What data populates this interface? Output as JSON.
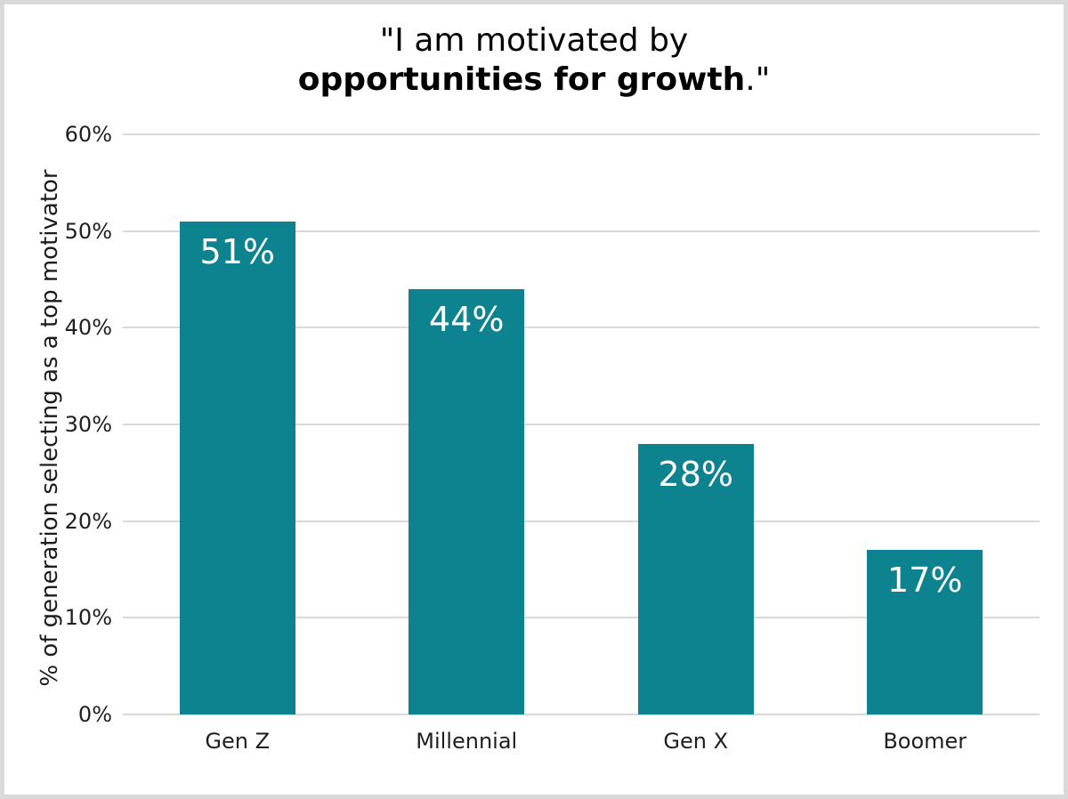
{
  "chart_data": {
    "type": "bar",
    "title_line1": "\"I am motivated by",
    "title_line2_bold": "opportunities for growth",
    "title_line2_suffix": ".\"",
    "categories": [
      "Gen Z",
      "Millennial",
      "Gen X",
      "Boomer"
    ],
    "values": [
      51,
      44,
      28,
      17
    ],
    "value_labels": [
      "51%",
      "44%",
      "28%",
      "17%"
    ],
    "xlabel": "",
    "ylabel": "% of generation selecting as a top motivator",
    "ylim": [
      0,
      60
    ],
    "yticks": [
      0,
      10,
      20,
      30,
      40,
      50,
      60
    ],
    "ytick_labels": [
      "0%",
      "10%",
      "20%",
      "30%",
      "40%",
      "50%",
      "60%"
    ],
    "grid": true,
    "legend_position": "none",
    "bar_color": "#0d8390",
    "bar_label_color": "#ffffff",
    "gridline_color": "#d9d9d9",
    "frame_border_color": "#d9d9d9"
  }
}
